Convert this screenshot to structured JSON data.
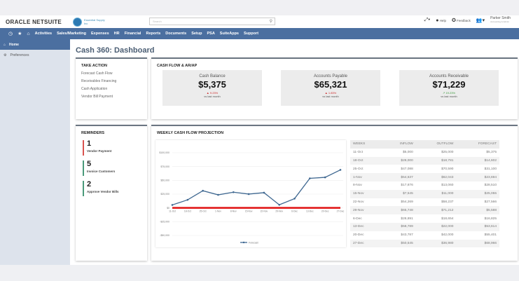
{
  "header": {
    "logo_left": "ORACLE ",
    "logo_right": "NETSUITE",
    "company_name": "Essential Supply Inc",
    "search_placeholder": "Search",
    "help_label": "Help",
    "feedback_label": "Feedback",
    "user_name": "Parker Smith",
    "user_role": "Accounting & Admin"
  },
  "nav": {
    "items": [
      "Activities",
      "Sales/Marketing",
      "Expenses",
      "HR",
      "Financial",
      "Reports",
      "Documents",
      "Setup",
      "PSA",
      "SuiteApps",
      "Support"
    ]
  },
  "sidebar": {
    "items": [
      {
        "label": "Home",
        "active": true
      },
      {
        "label": "Preferences",
        "active": false
      }
    ]
  },
  "page_title": "Cash 360: Dashboard",
  "take_action": {
    "title": "TAKE ACTION",
    "links": [
      "Forecast Cash Flow",
      "Receivables Financing",
      "Cash Application",
      "Vendor Bill Payment"
    ]
  },
  "cash_flow": {
    "title": "CASH FLOW & AR/AP",
    "kpis": [
      {
        "label": "Cash Balance",
        "value": "$5,375",
        "change": "▲ 9.23%",
        "vs": "vs last month",
        "color": "#cc2b2b"
      },
      {
        "label": "Accounts Payable",
        "value": "$65,321",
        "change": "▲ 1.83%",
        "vs": "vs last month",
        "color": "#cc2b2b"
      },
      {
        "label": "Accounts Receivable",
        "value": "$71,229",
        "change": "↗ 19.23%",
        "vs": "vs last month",
        "color": "#3a9a3a"
      }
    ]
  },
  "reminders": {
    "title": "REMINDERS",
    "items": [
      {
        "count": "1",
        "label": "Vendor Payment",
        "color": "#d9534f"
      },
      {
        "count": "5",
        "label": "Invoice Customers",
        "color": "#4a9a7a"
      },
      {
        "count": "2",
        "label": "Approve Vendor Bills",
        "color": "#4a9a7a"
      }
    ]
  },
  "projection": {
    "title": "WEEKLY CASH FLOW PROJECTION",
    "table": {
      "headers": [
        "WEEKS",
        "INFLOW",
        "OUTFLOW",
        "FORECAST"
      ],
      "rows": [
        [
          "11-Oct",
          "$5,000",
          "$25,000",
          "$5,375"
        ],
        [
          "18-Oct",
          "$28,000",
          "$18,781",
          "$14,602"
        ],
        [
          "25-Oct",
          "$47,088",
          "$70,590",
          "$31,100"
        ],
        [
          "1-Nov",
          "$54,637",
          "$62,043",
          "$23,694"
        ],
        [
          "8-Nov",
          "$17,876",
          "$13,060",
          "$28,510"
        ],
        [
          "15-Nov",
          "$7,545",
          "$11,000",
          "$25,055"
        ],
        [
          "22-Nov",
          "$54,269",
          "$58,237",
          "$27,566"
        ],
        [
          "29-Nov",
          "$65,748",
          "$71,212",
          "$5,588"
        ],
        [
          "6-Dec",
          "$28,891",
          "$18,654",
          "$16,825"
        ],
        [
          "13-Dec",
          "$58,789",
          "$22,000",
          "$53,614"
        ],
        [
          "20-Dec",
          "$43,787",
          "$42,000",
          "$55,401"
        ],
        [
          "27-Dec",
          "$50,545",
          "$36,980",
          "$68,966"
        ]
      ]
    }
  },
  "chart_data": {
    "type": "line",
    "title": "",
    "categories": [
      "11-Oct",
      "18-Oct",
      "25-Oct",
      "1-Nov",
      "8-Nov",
      "15-Nov",
      "22-Nov",
      "29-Nov",
      "6-Dec",
      "13-Dec",
      "20-Dec",
      "27-Dec"
    ],
    "series": [
      {
        "name": "Forecast",
        "values": [
          5375,
          14602,
          31100,
          23694,
          28510,
          25055,
          27566,
          5588,
          16825,
          53614,
          55401,
          68966
        ],
        "color": "#3f6891"
      }
    ],
    "baseline": {
      "value": 0,
      "color": "#e01010"
    },
    "yticks": [
      "$100,000",
      "$75,000",
      "$50,000",
      "$25,000",
      "$0",
      "-$25,000",
      "-$50,000"
    ],
    "ylim": [
      -50000,
      100000
    ],
    "legend": "Forecast",
    "legend_position": "bottom"
  }
}
